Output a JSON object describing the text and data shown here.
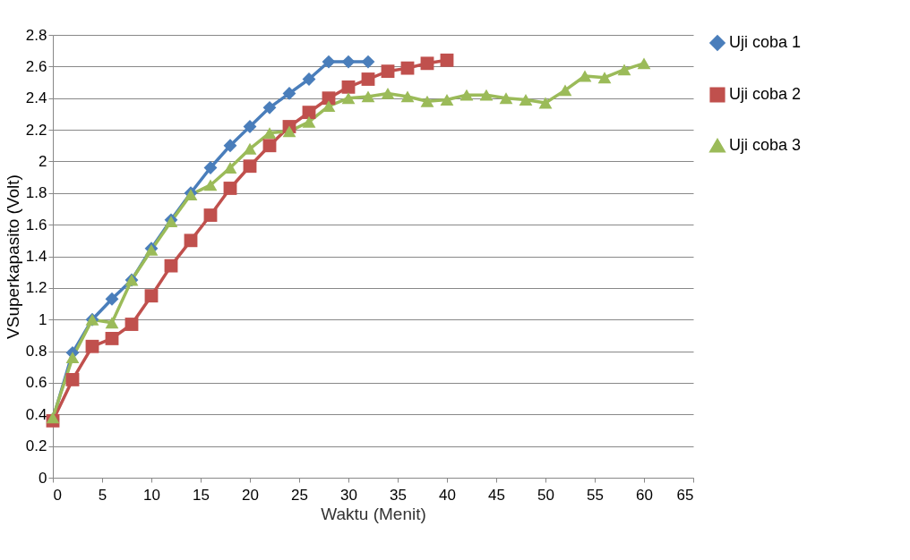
{
  "chart_data": {
    "type": "line",
    "xlabel": "Waktu (Menit)",
    "ylabel": "VSuperkapasito (Volt)",
    "xlim": [
      0,
      65
    ],
    "xticks": [
      0,
      5,
      10,
      15,
      20,
      25,
      30,
      35,
      40,
      45,
      50,
      55,
      60,
      65
    ],
    "ylim": [
      0,
      2.8
    ],
    "yticks": [
      0,
      0.2,
      0.4,
      0.6,
      0.8,
      1,
      1.2,
      1.4,
      1.6,
      1.8,
      2,
      2.2,
      2.4,
      2.6,
      2.8
    ],
    "grid": "y",
    "legend": "top right",
    "series": [
      {
        "name": "Uji coba 1",
        "color": "#4a7ebb",
        "marker": "diamond",
        "x": [
          0,
          2,
          4,
          6,
          8,
          10,
          12,
          14,
          16,
          18,
          20,
          22,
          24,
          26,
          28,
          30,
          32
        ],
        "values": [
          0.37,
          0.79,
          1.0,
          1.13,
          1.25,
          1.45,
          1.63,
          1.8,
          1.96,
          2.1,
          2.22,
          2.34,
          2.43,
          2.52,
          2.63,
          2.63,
          2.63
        ]
      },
      {
        "name": "Uji coba 2",
        "color": "#c0504d",
        "marker": "square",
        "x": [
          0,
          2,
          4,
          6,
          8,
          10,
          12,
          14,
          16,
          18,
          20,
          22,
          24,
          26,
          28,
          30,
          32,
          34,
          36,
          38,
          40
        ],
        "values": [
          0.36,
          0.62,
          0.83,
          0.88,
          0.97,
          1.15,
          1.34,
          1.5,
          1.66,
          1.83,
          1.97,
          2.1,
          2.22,
          2.31,
          2.4,
          2.47,
          2.52,
          2.57,
          2.59,
          2.62,
          2.64
        ]
      },
      {
        "name": "Uji coba 3",
        "color": "#9bbb59",
        "marker": "triangle",
        "x": [
          0,
          2,
          4,
          6,
          8,
          10,
          12,
          14,
          16,
          18,
          20,
          22,
          24,
          26,
          28,
          30,
          32,
          34,
          36,
          38,
          40,
          42,
          44,
          46,
          48,
          50,
          52,
          54,
          56,
          58,
          60
        ],
        "values": [
          0.38,
          0.76,
          1.0,
          0.98,
          1.25,
          1.44,
          1.62,
          1.79,
          1.85,
          1.96,
          2.08,
          2.18,
          2.19,
          2.25,
          2.35,
          2.4,
          2.41,
          2.43,
          2.41,
          2.38,
          2.39,
          2.42,
          2.42,
          2.4,
          2.39,
          2.37,
          2.45,
          2.54,
          2.53,
          2.58,
          2.62
        ]
      }
    ]
  }
}
